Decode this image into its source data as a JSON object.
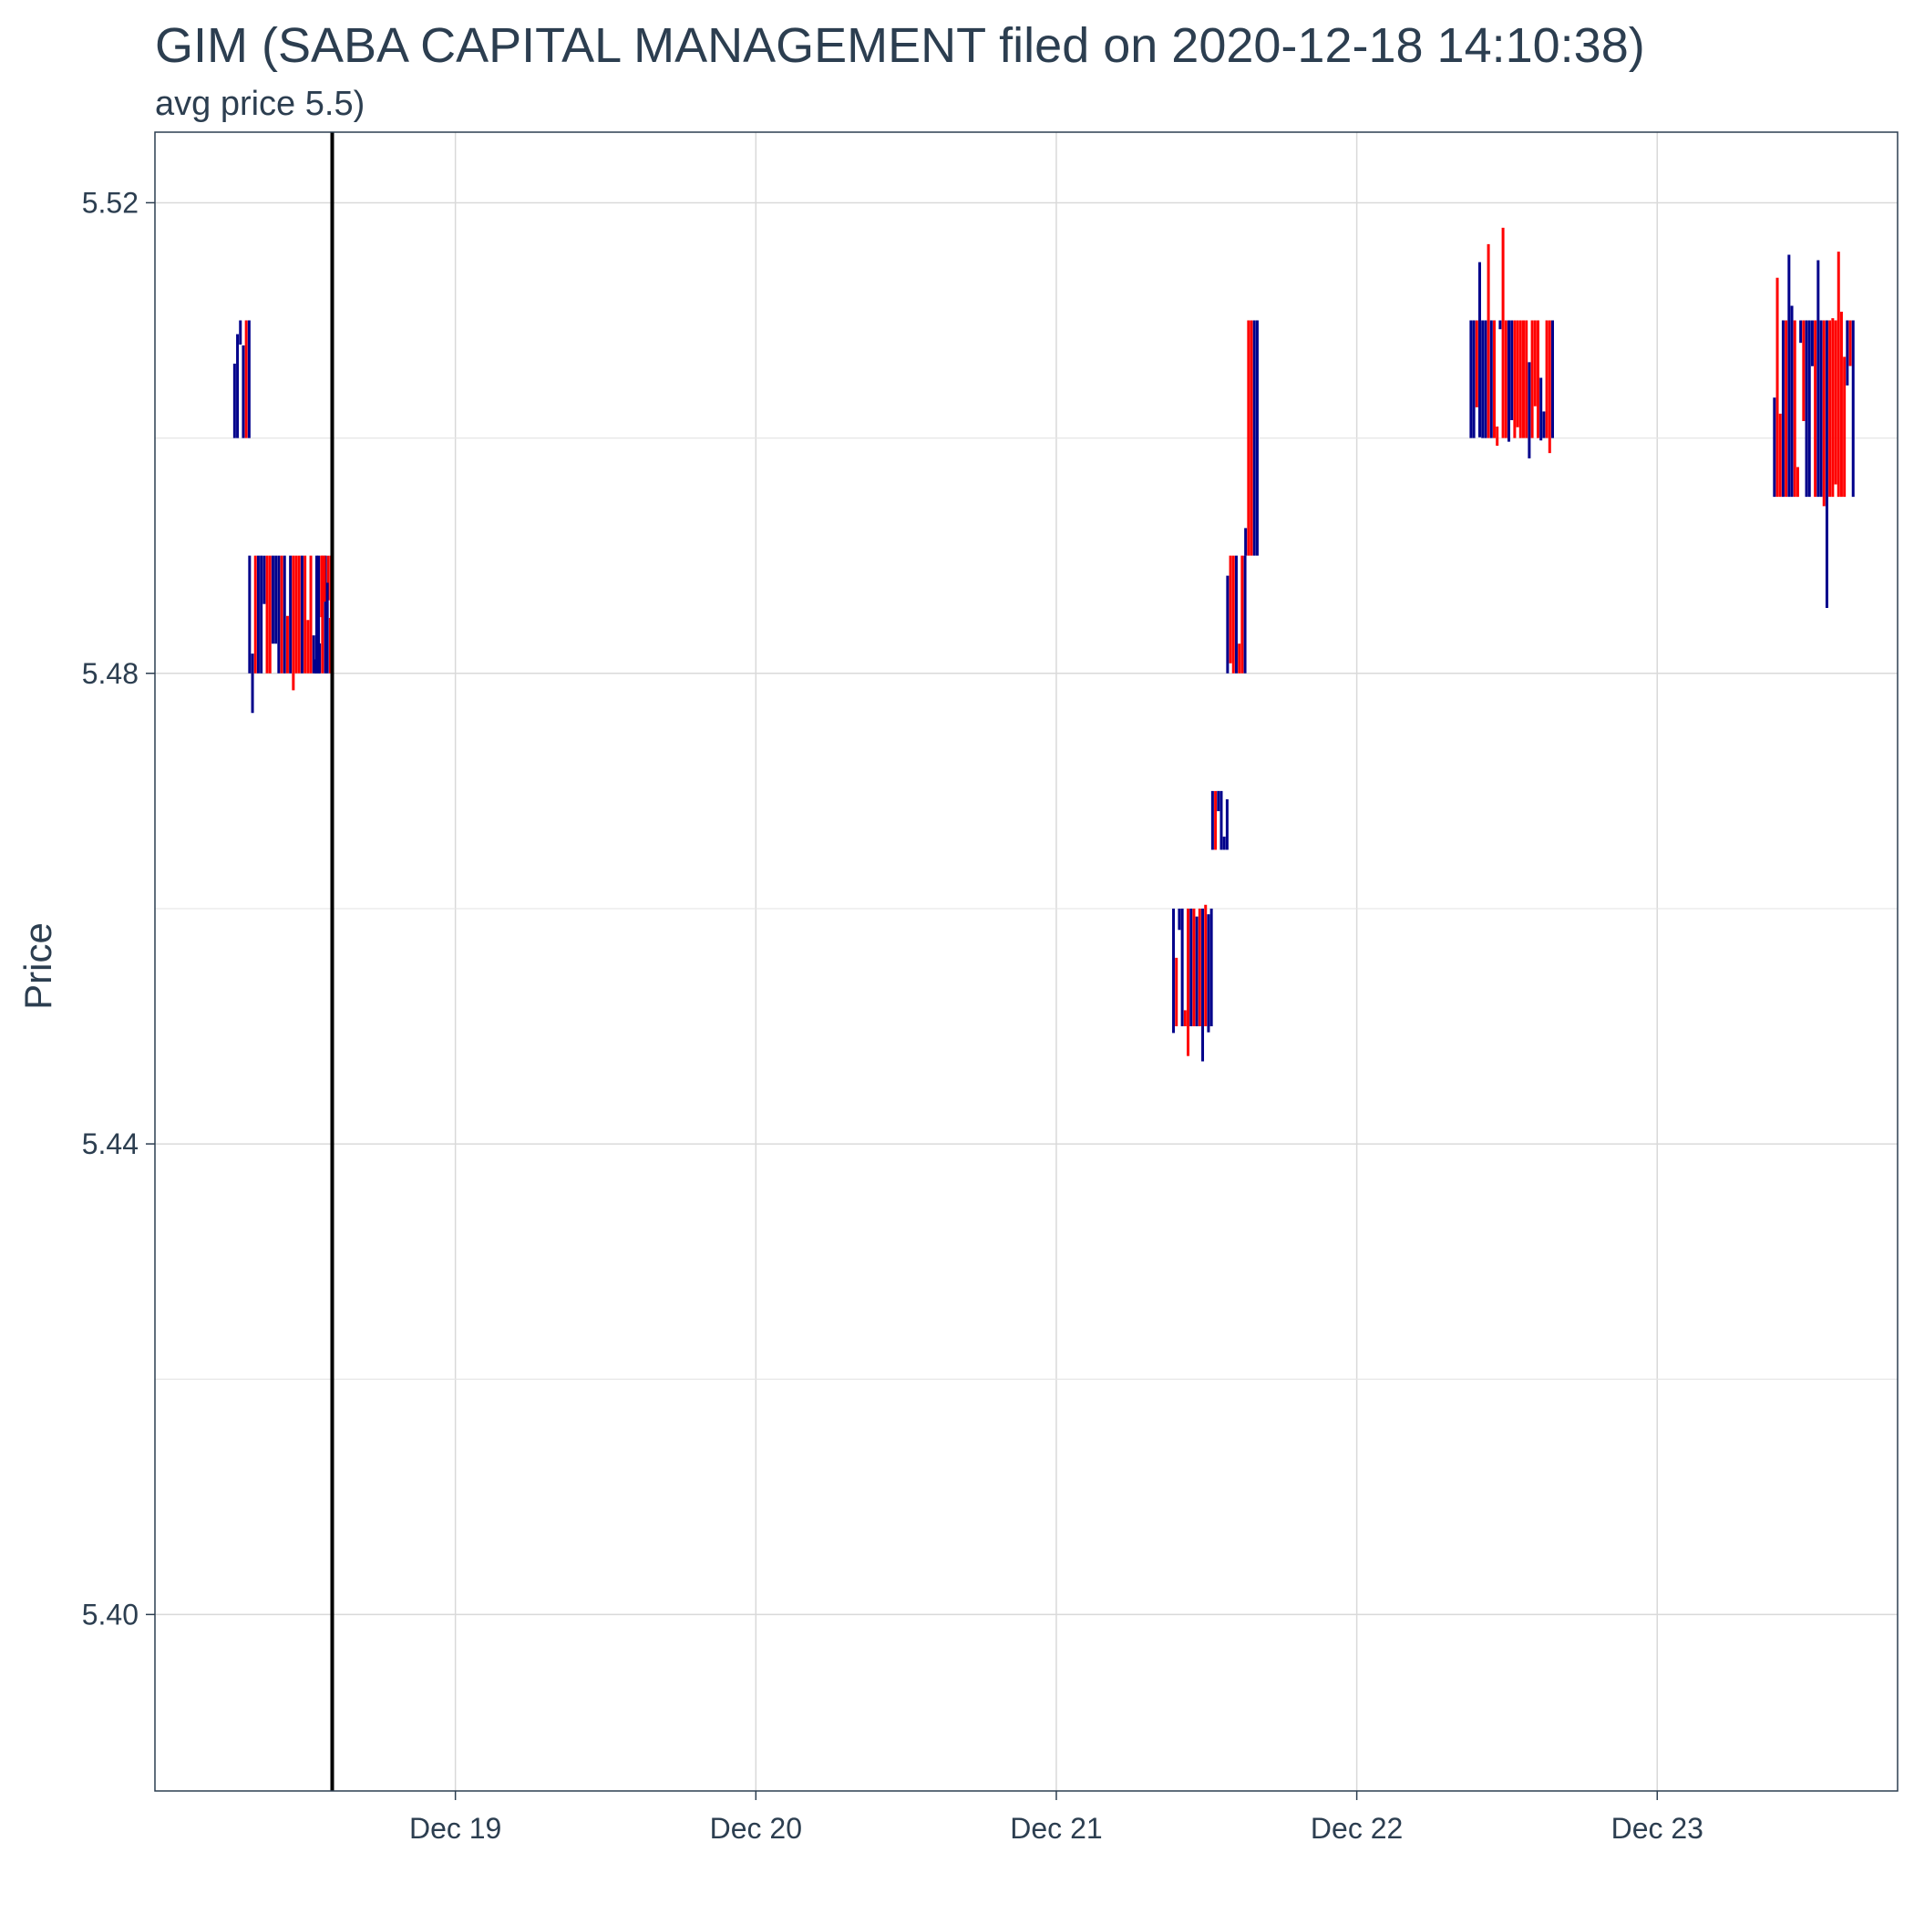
{
  "chart_data": {
    "type": "candlestick",
    "title": "GIM (SABA CAPITAL MANAGEMENT filed on 2020-12-18 14:10:38)",
    "subtitle": "avg price 5.5)",
    "xlabel": "",
    "ylabel": "Price",
    "x_unit": "days since 2020-12-18 00:00",
    "xlim": [
      0.0,
      5.8
    ],
    "ylim": [
      5.385,
      5.526
    ],
    "x_ticks": [
      {
        "value": 1,
        "label": "Dec 19"
      },
      {
        "value": 2,
        "label": "Dec 20"
      },
      {
        "value": 3,
        "label": "Dec 21"
      },
      {
        "value": 4,
        "label": "Dec 22"
      },
      {
        "value": 5,
        "label": "Dec 23"
      }
    ],
    "y_ticks": [
      {
        "value": 5.4,
        "label": "5.40"
      },
      {
        "value": 5.44,
        "label": "5.44"
      },
      {
        "value": 5.48,
        "label": "5.48"
      },
      {
        "value": 5.52,
        "label": "5.52"
      }
    ],
    "y_minor_gridlines": [
      5.42,
      5.46,
      5.5
    ],
    "grid": true,
    "filing_marker": {
      "x": 0.59,
      "label": "filed 2020-12-18 14:10:38",
      "color": "#000000"
    },
    "colors": {
      "up": "#00008b",
      "down": "#ff0000"
    },
    "segments": [
      {
        "start": 0.265,
        "end": 0.315,
        "lo": 5.5,
        "hi": 5.51,
        "base_lo": 5.5,
        "base_hi": 5.51
      },
      {
        "start": 0.315,
        "end": 0.59,
        "lo": 5.476,
        "hi": 5.49,
        "base_lo": 5.48,
        "base_hi": 5.49
      },
      {
        "start": 0.59,
        "end": 0.535,
        "lo": 5.48,
        "hi": 5.49,
        "base_lo": 5.48,
        "base_hi": 5.49
      },
      {
        "start": 3.39,
        "end": 3.52,
        "lo": 5.445,
        "hi": 5.47,
        "base_lo": 5.45,
        "base_hi": 5.46
      },
      {
        "start": 3.52,
        "end": 3.57,
        "lo": 5.464,
        "hi": 5.47,
        "base_lo": 5.465,
        "base_hi": 5.47
      },
      {
        "start": 3.57,
        "end": 3.63,
        "lo": 5.476,
        "hi": 5.49,
        "base_lo": 5.48,
        "base_hi": 5.49
      },
      {
        "start": 3.63,
        "end": 3.67,
        "lo": 5.48,
        "hi": 5.51,
        "base_lo": 5.49,
        "base_hi": 5.51
      },
      {
        "start": 4.38,
        "end": 4.66,
        "lo": 5.498,
        "hi": 5.52,
        "base_lo": 5.5,
        "base_hi": 5.51
      },
      {
        "start": 5.39,
        "end": 5.66,
        "lo": 5.48,
        "hi": 5.52,
        "base_lo": 5.495,
        "base_hi": 5.51
      }
    ]
  }
}
